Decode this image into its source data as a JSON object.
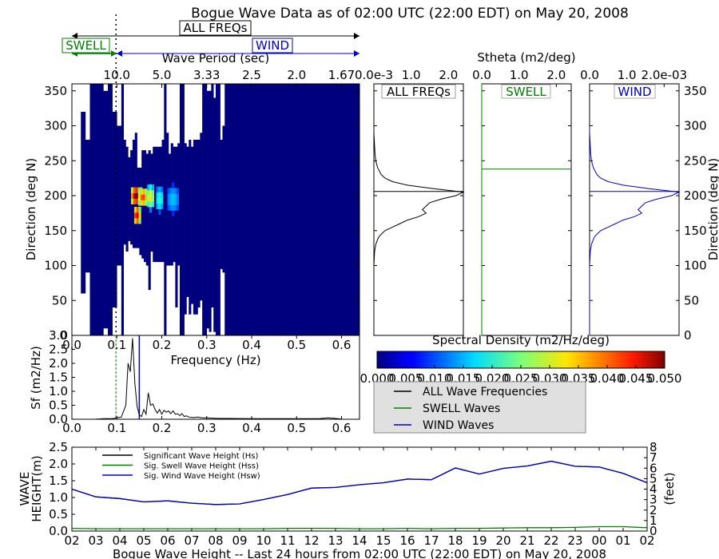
{
  "title": "Bogue Wave Data as of 02:00 UTC (22:00 EDT) on May 20, 2008",
  "colors": {
    "total": "#000000",
    "swell": "#008000",
    "wind": "#0000cc",
    "navy": "#00007f",
    "legend_bg": "#e0e0e0"
  },
  "chart_data": [
    {
      "id": "heatmap",
      "type": "heatmap",
      "ylabel": "Direction (deg N)",
      "top_axis_label": "Wave Period (sec)",
      "top_ticks": [
        "10.0",
        "5.0",
        "3.33",
        "2.5",
        "2.0",
        "1.67"
      ],
      "top_tick_freqs": [
        0.1,
        0.2,
        0.3,
        0.4,
        0.5,
        0.6
      ],
      "xlim": [
        0.0,
        0.64
      ],
      "ylim": [
        0,
        360
      ],
      "yticks": [
        0,
        50,
        100,
        150,
        200,
        250,
        300,
        350
      ],
      "band_labels": {
        "all": "ALL FREQs",
        "swell": "SWELL",
        "wind": "WIND"
      },
      "separation_freq": 0.1,
      "data_columns": [
        [
          0.02,
          0.03,
          60,
          320
        ],
        [
          0.03,
          0.04,
          90,
          280
        ],
        [
          0.04,
          0.06,
          0,
          360
        ],
        [
          0.06,
          0.07,
          0,
          360
        ],
        [
          0.07,
          0.08,
          10,
          350
        ],
        [
          0.08,
          0.09,
          0,
          360
        ],
        [
          0.09,
          0.1,
          40,
          320
        ],
        [
          0.1,
          0.11,
          100,
          300
        ],
        [
          0.11,
          0.115,
          0,
          360
        ],
        [
          0.115,
          0.12,
          130,
          280
        ],
        [
          0.12,
          0.125,
          120,
          270
        ],
        [
          0.125,
          0.13,
          135,
          255
        ],
        [
          0.13,
          0.135,
          130,
          265
        ],
        [
          0.135,
          0.14,
          125,
          280
        ],
        [
          0.14,
          0.145,
          125,
          290
        ],
        [
          0.145,
          0.15,
          125,
          240
        ],
        [
          0.15,
          0.155,
          115,
          240
        ],
        [
          0.155,
          0.16,
          110,
          265
        ],
        [
          0.16,
          0.165,
          105,
          265
        ],
        [
          0.165,
          0.17,
          100,
          260
        ],
        [
          0.17,
          0.175,
          65,
          265
        ],
        [
          0.175,
          0.18,
          120,
          260
        ],
        [
          0.18,
          0.19,
          105,
          270
        ],
        [
          0.19,
          0.2,
          105,
          270
        ],
        [
          0.2,
          0.205,
          105,
          280
        ],
        [
          0.205,
          0.21,
          0,
          360
        ],
        [
          0.21,
          0.215,
          100,
          290
        ],
        [
          0.215,
          0.22,
          100,
          260
        ],
        [
          0.22,
          0.225,
          100,
          275
        ],
        [
          0.225,
          0.23,
          105,
          270
        ],
        [
          0.23,
          0.235,
          40,
          270
        ],
        [
          0.235,
          0.24,
          100,
          275
        ],
        [
          0.24,
          0.25,
          0,
          360
        ],
        [
          0.25,
          0.255,
          30,
          275
        ],
        [
          0.255,
          0.26,
          55,
          270
        ],
        [
          0.26,
          0.265,
          30,
          280
        ],
        [
          0.265,
          0.27,
          45,
          270
        ],
        [
          0.27,
          0.28,
          30,
          280
        ],
        [
          0.28,
          0.285,
          40,
          280
        ],
        [
          0.285,
          0.29,
          50,
          290
        ],
        [
          0.29,
          0.3,
          0,
          360
        ],
        [
          0.3,
          0.305,
          10,
          350
        ],
        [
          0.305,
          0.31,
          5,
          350
        ],
        [
          0.31,
          0.315,
          40,
          360
        ],
        [
          0.315,
          0.32,
          5,
          340
        ],
        [
          0.32,
          0.33,
          0,
          360
        ],
        [
          0.33,
          0.335,
          95,
          280
        ],
        [
          0.335,
          0.34,
          90,
          300
        ],
        [
          0.34,
          0.35,
          0,
          360
        ],
        [
          0.35,
          0.64,
          0,
          360
        ]
      ],
      "hotspots": [
        {
          "f": 0.143,
          "d": 200,
          "v": 0.05,
          "rf": 0.014,
          "rd": 16
        },
        {
          "f": 0.145,
          "d": 172,
          "v": 0.046,
          "rf": 0.009,
          "rd": 16
        },
        {
          "f": 0.158,
          "d": 198,
          "v": 0.04,
          "rf": 0.013,
          "rd": 16
        },
        {
          "f": 0.175,
          "d": 198,
          "v": 0.03,
          "rf": 0.01,
          "rd": 18
        },
        {
          "f": 0.195,
          "d": 195,
          "v": 0.018,
          "rf": 0.01,
          "rd": 18
        },
        {
          "f": 0.225,
          "d": 195,
          "v": 0.012,
          "rf": 0.015,
          "rd": 20
        }
      ]
    },
    {
      "id": "sf",
      "type": "line",
      "xlabel": "Frequency (Hz)",
      "ylabel": "Sf (m2/Hz)",
      "xlim": [
        0.0,
        0.64
      ],
      "ylim": [
        0.0,
        3.0
      ],
      "xticks": [
        "0.0",
        "0.1",
        "0.2",
        "0.3",
        "0.4",
        "0.5",
        "0.6"
      ],
      "yticks": [
        "0.0",
        "0.5",
        "1.0",
        "1.5",
        "2.0",
        "2.5",
        "3.0"
      ],
      "swell_marker": 0.098,
      "wind_marker": 0.15,
      "x": [
        0.0,
        0.03,
        0.05,
        0.07,
        0.09,
        0.1,
        0.11,
        0.12,
        0.125,
        0.13,
        0.135,
        0.14,
        0.145,
        0.15,
        0.155,
        0.16,
        0.165,
        0.17,
        0.175,
        0.18,
        0.185,
        0.19,
        0.195,
        0.2,
        0.205,
        0.21,
        0.215,
        0.22,
        0.225,
        0.23,
        0.235,
        0.24,
        0.245,
        0.25,
        0.255,
        0.26,
        0.27,
        0.28,
        0.29,
        0.3,
        0.31,
        0.33,
        0.35,
        0.4,
        0.45,
        0.5,
        0.55,
        0.57,
        0.6
      ],
      "y": [
        0.0,
        0.0,
        0.0,
        0.02,
        0.02,
        0.05,
        0.08,
        0.5,
        2.0,
        1.7,
        2.9,
        1.3,
        0.45,
        0.15,
        0.1,
        0.35,
        0.18,
        0.95,
        0.5,
        0.55,
        0.35,
        0.22,
        0.35,
        0.18,
        0.32,
        0.25,
        0.3,
        0.2,
        0.3,
        0.18,
        0.2,
        0.13,
        0.2,
        0.1,
        0.12,
        0.08,
        0.06,
        0.08,
        0.05,
        0.05,
        0.04,
        0.03,
        0.03,
        0.02,
        0.02,
        0.02,
        0.02,
        0.05,
        0.01
      ]
    },
    {
      "id": "stheta_all",
      "type": "line",
      "label": "ALL FREQs",
      "top_axis_label": "Stheta (m2/deg)",
      "xticks": [
        "0.0e-3",
        "1.0",
        "2.0"
      ],
      "xlim": [
        0.0,
        0.0024
      ],
      "ylim": [
        0,
        360
      ],
      "peak_dir": 206,
      "y": [
        0,
        20,
        40,
        60,
        80,
        100,
        120,
        130,
        140,
        145,
        150,
        155,
        160,
        165,
        170,
        175,
        180,
        185,
        190,
        195,
        200,
        205,
        210,
        215,
        220,
        225,
        230,
        240,
        250,
        260,
        270,
        280,
        290,
        300
      ],
      "x": [
        0.0,
        0.0,
        0.0,
        0.0,
        0.0,
        0.0,
        2e-05,
        5e-05,
        0.00012,
        0.0002,
        0.0003,
        0.0005,
        0.0007,
        0.0009,
        0.0012,
        0.0014,
        0.0013,
        0.0014,
        0.0015,
        0.0018,
        0.0022,
        0.0024,
        0.0016,
        0.0009,
        0.0005,
        0.0003,
        0.0002,
        0.0001,
        5e-05,
        3e-05,
        2e-05,
        1e-05,
        0.0,
        0.0
      ]
    },
    {
      "id": "stheta_swell",
      "type": "line",
      "label": "SWELL",
      "xticks": [
        "0.0",
        "1.0",
        "2.0"
      ],
      "xlim": [
        0.0,
        0.0024
      ],
      "ylim": [
        0,
        360
      ],
      "peak_dir": 238,
      "y": [
        0,
        360
      ],
      "x": [
        0.0,
        0.0
      ]
    },
    {
      "id": "stheta_wind",
      "type": "line",
      "label": "WIND",
      "xticks": [
        "0.0",
        "1.0",
        "2.0e-03"
      ],
      "xlim": [
        0.0,
        0.0024
      ],
      "ylim": [
        0,
        360
      ],
      "yticks": [
        0,
        50,
        100,
        150,
        200,
        250,
        300,
        350
      ],
      "peak_dir": 206,
      "y": [
        0,
        20,
        40,
        60,
        80,
        100,
        120,
        130,
        140,
        145,
        150,
        155,
        160,
        165,
        170,
        175,
        180,
        185,
        190,
        195,
        200,
        205,
        210,
        215,
        220,
        225,
        230,
        240,
        250,
        260,
        270,
        280,
        290,
        300
      ],
      "x": [
        0.0,
        0.0,
        0.0,
        0.0,
        0.0,
        0.0,
        2e-05,
        5e-05,
        0.00012,
        0.0002,
        0.0003,
        0.0005,
        0.0007,
        0.0009,
        0.0012,
        0.0014,
        0.0013,
        0.0014,
        0.0015,
        0.0018,
        0.0022,
        0.0024,
        0.0016,
        0.0009,
        0.0005,
        0.0003,
        0.0002,
        0.0001,
        5e-05,
        3e-05,
        2e-05,
        1e-05,
        0.0,
        0.0
      ]
    },
    {
      "id": "colorbar",
      "type": "colorbar",
      "title": "Spectral Density (m2/Hz/deg)",
      "range": [
        0.0,
        0.05
      ],
      "ticks": [
        "0.000",
        "0.005",
        "0.010",
        "0.015",
        "0.020",
        "0.025",
        "0.030",
        "0.035",
        "0.040",
        "0.045",
        "0.050"
      ]
    },
    {
      "id": "legend",
      "type": "legend",
      "entries": [
        {
          "label": "ALL Wave Frequencies",
          "color": "#000000"
        },
        {
          "label": "SWELL Waves",
          "color": "#008000"
        },
        {
          "label": "WIND Waves",
          "color": "#0000cc"
        }
      ]
    },
    {
      "id": "waveheight",
      "type": "line",
      "title": "Bogue Wave Height -- Last 24 hours from 02:00 UTC (22:00 EDT) on May 20, 2008",
      "ylabel": [
        "WAVE",
        "HEIGHT(m)"
      ],
      "y2label": "(feet)",
      "categories": [
        "02",
        "03",
        "04",
        "05",
        "06",
        "07",
        "08",
        "09",
        "10",
        "11",
        "12",
        "13",
        "14",
        "15",
        "16",
        "17",
        "18",
        "19",
        "20",
        "21",
        "22",
        "23",
        "00",
        "01",
        "02"
      ],
      "ylim": [
        0.0,
        2.5
      ],
      "yticks": [
        "0.0",
        "0.5",
        "1.0",
        "1.5",
        "2.0",
        "2.5"
      ],
      "y2ticks": [
        "0",
        "1",
        "2",
        "3",
        "4",
        "5",
        "6",
        "7",
        "8"
      ],
      "series": [
        {
          "name": "Significant Wave Height (Hs)",
          "color": "#000000",
          "values": [
            1.25,
            1.02,
            0.97,
            0.87,
            0.9,
            0.83,
            0.79,
            0.81,
            0.94,
            1.09,
            1.28,
            1.3,
            1.38,
            1.44,
            1.55,
            1.53,
            1.88,
            1.7,
            1.87,
            1.94,
            2.08,
            1.93,
            1.91,
            1.72,
            1.44
          ]
        },
        {
          "name": "Sig. Swell Wave Height (Hss)",
          "color": "#008000",
          "values": [
            0.08,
            0.07,
            0.07,
            0.07,
            0.07,
            0.07,
            0.07,
            0.07,
            0.07,
            0.08,
            0.08,
            0.08,
            0.07,
            0.07,
            0.08,
            0.07,
            0.08,
            0.08,
            0.09,
            0.1,
            0.1,
            0.11,
            0.13,
            0.13,
            0.1
          ]
        },
        {
          "name": "Sig. Wind Wave Height (Hsw)",
          "color": "#0000cc",
          "values": [
            1.25,
            1.02,
            0.97,
            0.87,
            0.9,
            0.83,
            0.79,
            0.81,
            0.94,
            1.09,
            1.28,
            1.3,
            1.38,
            1.44,
            1.55,
            1.53,
            1.88,
            1.7,
            1.87,
            1.94,
            2.08,
            1.93,
            1.91,
            1.72,
            1.44
          ]
        }
      ]
    }
  ]
}
